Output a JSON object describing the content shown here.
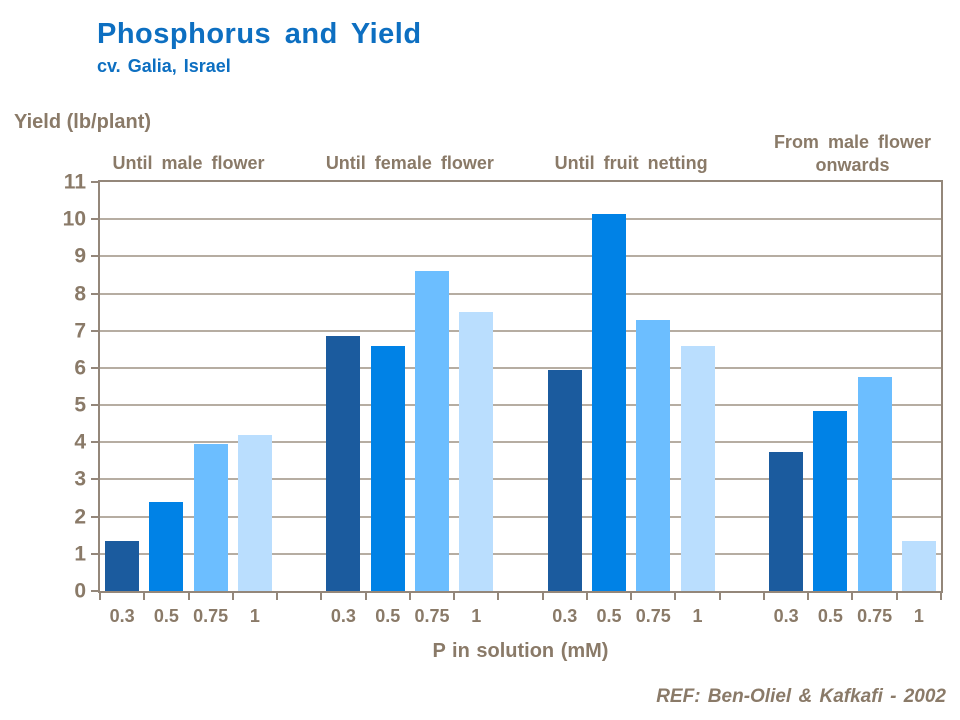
{
  "colors": {
    "title_blue": "#0d6fc1",
    "text_brown": "#8a7a68",
    "gridline": "#b6ada2",
    "axis": "#94877a",
    "bar_palette": [
      "#1b5b9e",
      "#0082e6",
      "#6cbeff",
      "#badefe"
    ]
  },
  "reference": "REF: Ben-Oliel & Kafkafi - 2002",
  "chart_data": {
    "type": "bar",
    "title": "Phosphorus and Yield",
    "subtitle": "cv. Galia, Israel",
    "ylabel": "Yield (lb/plant)",
    "xlabel": "P in solution (mM)",
    "ylim": [
      0,
      11
    ],
    "y_tick_step": 1,
    "grid": true,
    "legend": "none",
    "x_tick_labels": [
      "0.3",
      "0.5",
      "0.75",
      "1"
    ],
    "groups": [
      {
        "label": "Until male flower",
        "values": [
          1.35,
          2.4,
          3.95,
          4.2
        ]
      },
      {
        "label": "Until female flower",
        "values": [
          6.85,
          6.6,
          8.6,
          7.5
        ]
      },
      {
        "label": "Until fruit netting",
        "values": [
          5.95,
          10.15,
          7.3,
          6.6
        ]
      },
      {
        "label": "From male flower onwards",
        "values": [
          3.75,
          4.85,
          5.75,
          1.35
        ]
      }
    ],
    "annotation": "REF: Ben-Oliel & Kafkafi - 2002"
  }
}
